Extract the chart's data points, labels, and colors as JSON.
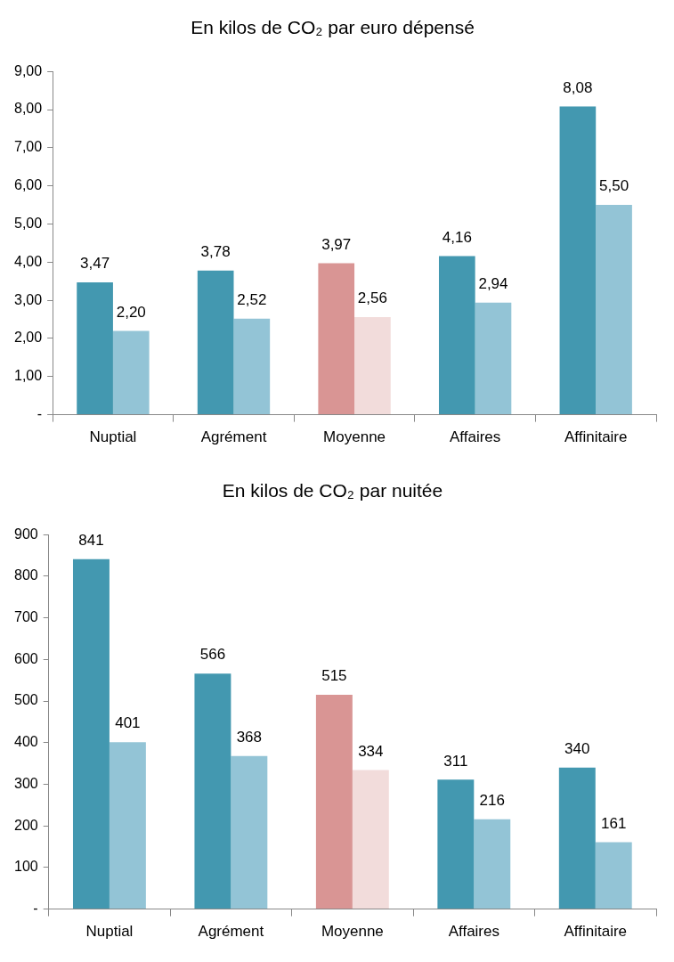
{
  "chart_data": [
    {
      "type": "bar",
      "title": "En kilos de CO₂ par euro dépensé",
      "categories": [
        "Nuptial",
        "Agrément",
        "Moyenne",
        "Affaires",
        "Affinitaire"
      ],
      "series": [
        {
          "colors": [
            "#4398b0",
            "#4398b0",
            "#d99594",
            "#4398b0",
            "#4398b0"
          ],
          "values": [
            3.47,
            3.78,
            3.97,
            4.16,
            8.08
          ],
          "value_labels": [
            "3,47",
            "3,78",
            "3,97",
            "4,16",
            "8,08"
          ]
        },
        {
          "colors": [
            "#93c4d6",
            "#93c4d6",
            "#f2dcdb",
            "#93c4d6",
            "#93c4d6"
          ],
          "values": [
            2.2,
            2.52,
            2.56,
            2.94,
            5.5
          ],
          "value_labels": [
            "2,20",
            "2,52",
            "2,56",
            "2,94",
            "5,50"
          ]
        }
      ],
      "ylim": [
        0,
        9
      ],
      "yticks": [
        {
          "value": 0,
          "label": "-"
        },
        {
          "value": 1,
          "label": "1,00"
        },
        {
          "value": 2,
          "label": "2,00"
        },
        {
          "value": 3,
          "label": "3,00"
        },
        {
          "value": 4,
          "label": "4,00"
        },
        {
          "value": 5,
          "label": "5,00"
        },
        {
          "value": 6,
          "label": "6,00"
        },
        {
          "value": 7,
          "label": "7,00"
        },
        {
          "value": 8,
          "label": "8,00"
        },
        {
          "value": 9,
          "label": "9,00"
        }
      ],
      "grid": false,
      "legend": false
    },
    {
      "type": "bar",
      "title": "En kilos de CO₂ par nuitée",
      "categories": [
        "Nuptial",
        "Agrément",
        "Moyenne",
        "Affaires",
        "Affinitaire"
      ],
      "series": [
        {
          "colors": [
            "#4398b0",
            "#4398b0",
            "#d99594",
            "#4398b0",
            "#4398b0"
          ],
          "values": [
            841,
            566,
            515,
            311,
            340
          ]
        },
        {
          "colors": [
            "#93c4d6",
            "#93c4d6",
            "#f2dcdb",
            "#93c4d6",
            "#93c4d6"
          ],
          "values": [
            401,
            368,
            334,
            216,
            161
          ]
        }
      ],
      "ylim": [
        0,
        900
      ],
      "yticks": [
        {
          "value": 0,
          "label": "-"
        },
        100,
        200,
        300,
        400,
        500,
        600,
        700,
        800,
        900
      ],
      "data_labels": true,
      "grid": false,
      "legend": false
    }
  ]
}
